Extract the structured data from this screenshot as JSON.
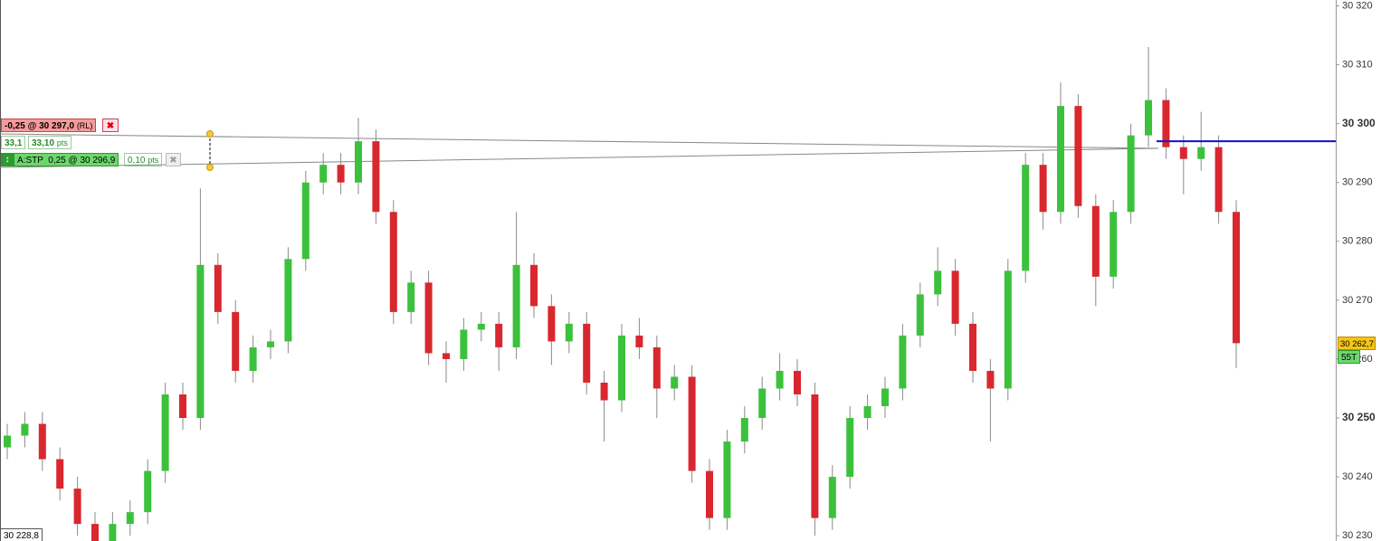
{
  "chart_data": {
    "type": "candlestick",
    "up_color": "#3cc13c",
    "down_color": "#d9272e",
    "wick_color": "#8a8a8a",
    "ylim": [
      30229.1,
      30321
    ],
    "yticks": [
      {
        "value": 30230,
        "label": "30 230"
      },
      {
        "value": 30240,
        "label": "30 240"
      },
      {
        "value": 30250,
        "label": "30 250"
      },
      {
        "value": 30260,
        "label": "30 260"
      },
      {
        "value": 30270,
        "label": "30 270"
      },
      {
        "value": 30280,
        "label": "30 280"
      },
      {
        "value": 30290,
        "label": "30 290"
      },
      {
        "value": 30300,
        "label": "30 300"
      },
      {
        "value": 30310,
        "label": "30 310"
      },
      {
        "value": 30320,
        "label": "30 320"
      }
    ],
    "open": [
      30245,
      30247,
      30249,
      30243,
      30238,
      30232,
      30229,
      30232,
      30234,
      30241,
      30254,
      30250,
      30276,
      30268,
      30258,
      30262,
      30263,
      30277,
      30290,
      30293,
      30290,
      30297,
      30285,
      30268,
      30273,
      30261,
      30260,
      30265,
      30266,
      30262,
      30276,
      30269,
      30263,
      30266,
      30256,
      30253,
      30264,
      30262,
      30255,
      30257,
      30241,
      30233,
      30246,
      30250,
      30255,
      30258,
      30254,
      30233,
      30240,
      30250,
      30252,
      30255,
      30264,
      30271,
      30275,
      30266,
      30258,
      30255,
      30275,
      30293,
      30285,
      30303,
      30286,
      30274,
      30285,
      30298,
      30304,
      30296,
      30294,
      30296,
      30285
    ],
    "high": [
      30249,
      30251,
      30251,
      30245,
      30240,
      30234,
      30234,
      30236,
      30243,
      30256,
      30256,
      30289,
      30278,
      30270,
      30264,
      30265,
      30279,
      30292,
      30295,
      30295,
      30301,
      30299,
      30287,
      30275,
      30275,
      30263,
      30267,
      30268,
      30268,
      30285,
      30278,
      30271,
      30268,
      30268,
      30258,
      30266,
      30267,
      30264,
      30259,
      30259,
      30243,
      30248,
      30252,
      30257,
      30261,
      30260,
      30256,
      30242,
      30252,
      30254,
      30257,
      30266,
      30273,
      30279,
      30277,
      30268,
      30260,
      30277,
      30295,
      30295,
      30307,
      30305,
      30288,
      30287,
      30300,
      30313,
      30306,
      30298,
      30302,
      30298,
      30287
    ],
    "low": [
      30243,
      30245,
      30241,
      30236,
      30230,
      30227,
      30227,
      30230,
      30232,
      30239,
      30248,
      30248,
      30266,
      30256,
      30256,
      30260,
      30261,
      30275,
      30288,
      30288,
      30288,
      30283,
      30266,
      30266,
      30259,
      30256,
      30258,
      30263,
      30258,
      30260,
      30267,
      30259,
      30261,
      30254,
      30246,
      30251,
      30260,
      30250,
      30253,
      30239,
      30231,
      30231,
      30244,
      30248,
      30253,
      30252,
      30230,
      30231,
      30238,
      30248,
      30250,
      30253,
      30262,
      30269,
      30264,
      30256,
      30246,
      30253,
      30273,
      30282,
      30283,
      30284,
      30269,
      30272,
      30283,
      30296,
      30294,
      30288,
      30292,
      30283,
      30258.5
    ],
    "close": [
      30247,
      30249,
      30243,
      30238,
      30232,
      30229,
      30232,
      30234,
      30241,
      30254,
      30250,
      30276,
      30268,
      30258,
      30262,
      30263,
      30277,
      30290,
      30293,
      30290,
      30297,
      30285,
      30268,
      30273,
      30261,
      30260,
      30265,
      30266,
      30262,
      30276,
      30269,
      30263,
      30266,
      30256,
      30253,
      30264,
      30262,
      30255,
      30257,
      30241,
      30233,
      30246,
      30250,
      30255,
      30258,
      30254,
      30233,
      30240,
      30250,
      30252,
      30255,
      30264,
      30271,
      30275,
      30266,
      30258,
      30255,
      30275,
      30293,
      30285,
      30303,
      30286,
      30274,
      30285,
      30298,
      30304,
      30296,
      30294,
      30296,
      30285,
      30262.7
    ],
    "order_level": {
      "value": 30297,
      "color": "#1010c8"
    },
    "last_price": {
      "value": 30262.7,
      "label": "30 262,7"
    },
    "countdown": "55T",
    "corner_label": "30 228,8",
    "orders": {
      "sell": "-0,25 @ 30 297,0",
      "sell_tag": "(RL)",
      "distance": "33,1",
      "distance_pts": "33,10",
      "unit": "pts",
      "stop": "A:STP  0,25 @ 30 296,9",
      "stop_pts": "0,10"
    }
  }
}
